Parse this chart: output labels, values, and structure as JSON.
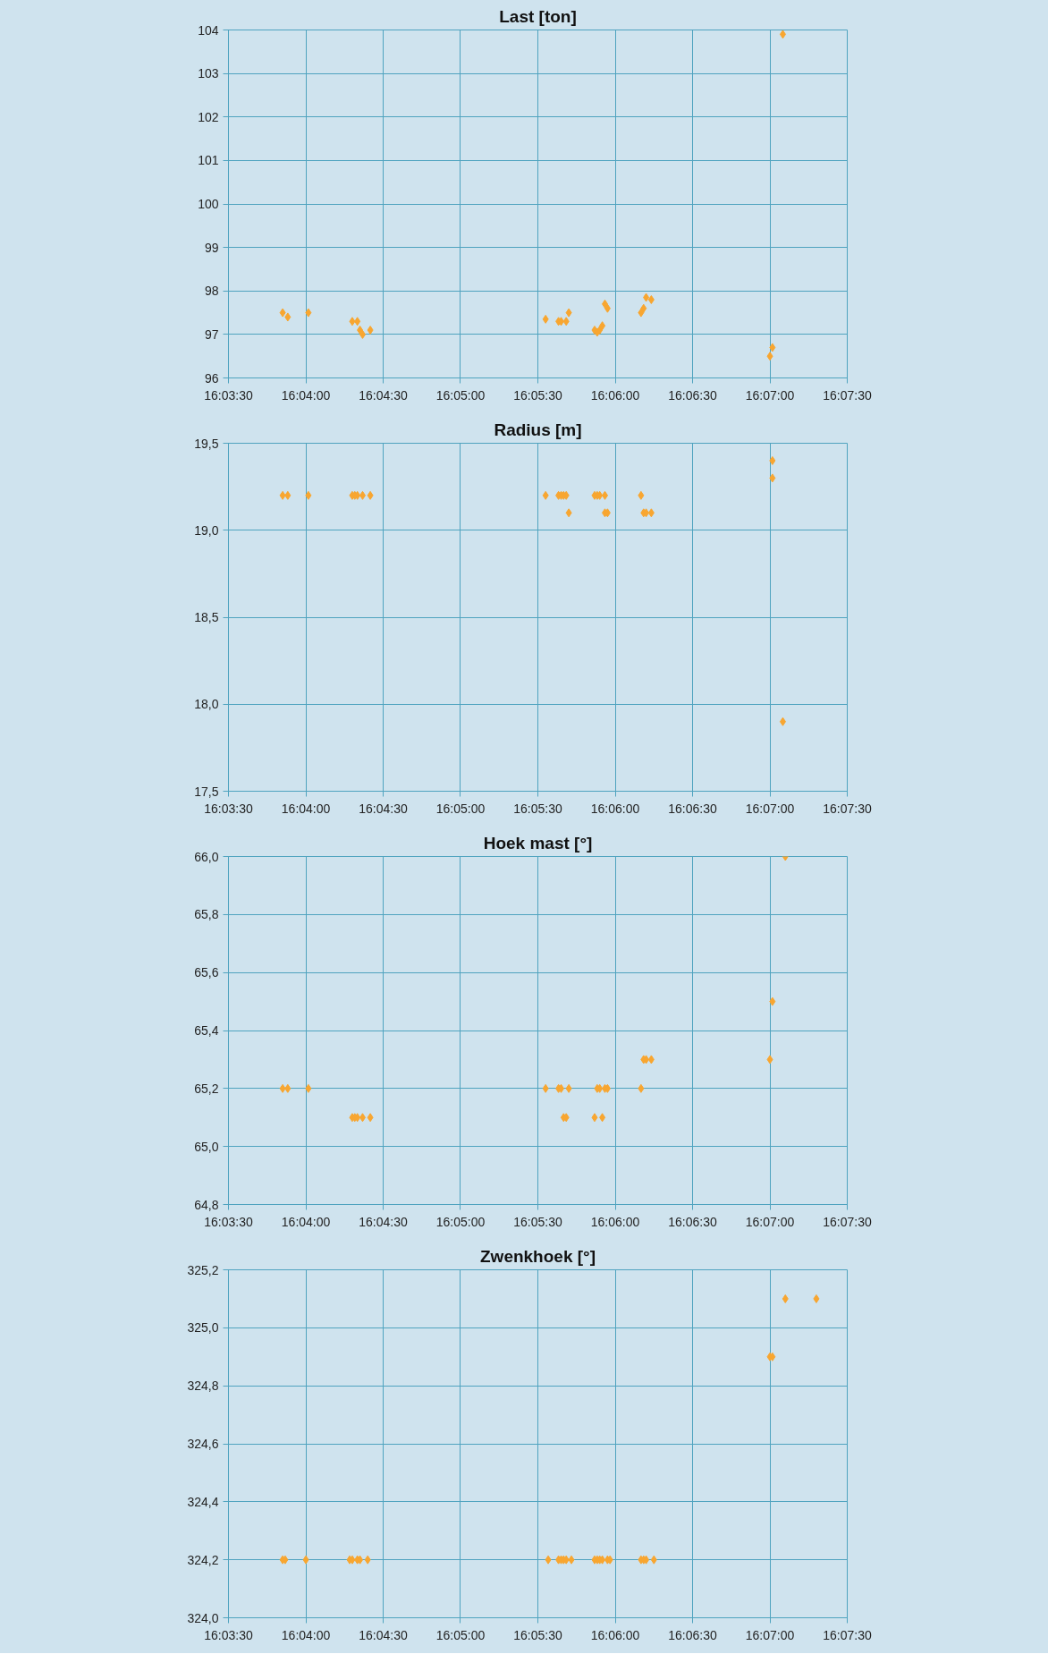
{
  "chart_data": [
    {
      "type": "scatter",
      "title": "Last [ton]",
      "marker": "diamond",
      "grid": true,
      "x": [
        16.06417,
        16.06472,
        16.06694,
        16.07167,
        16.07222,
        16.0725,
        16.07278,
        16.07361,
        16.0925,
        16.09389,
        16.09417,
        16.09472,
        16.095,
        16.09778,
        16.09806,
        16.09833,
        16.09861,
        16.09889,
        16.09917,
        16.10278,
        16.10306,
        16.10333,
        16.10389,
        16.11667,
        16.11694,
        16.11806
      ],
      "series": [
        {
          "color": "#f8a630",
          "values": [
            97.5,
            97.4,
            97.5,
            97.3,
            97.3,
            97.1,
            97.0,
            97.1,
            97.35,
            97.3,
            97.3,
            97.3,
            97.5,
            97.1,
            97.05,
            97.1,
            97.2,
            97.7,
            97.6,
            97.5,
            97.6,
            97.85,
            97.8,
            96.5,
            96.7,
            103.9
          ]
        }
      ],
      "xlim": [
        16.05833,
        16.125
      ],
      "ylim": [
        96,
        104
      ],
      "xticks": [
        {
          "value": 16.05833,
          "label": "16:03:30"
        },
        {
          "value": 16.06667,
          "label": "16:04:00"
        },
        {
          "value": 16.075,
          "label": "16:04:30"
        },
        {
          "value": 16.08333,
          "label": "16:05:00"
        },
        {
          "value": 16.09167,
          "label": "16:05:30"
        },
        {
          "value": 16.1,
          "label": "16:06:00"
        },
        {
          "value": 16.10833,
          "label": "16:06:30"
        },
        {
          "value": 16.11667,
          "label": "16:07:00"
        },
        {
          "value": 16.125,
          "label": "16:07:30"
        }
      ],
      "yticks": [
        96,
        97,
        98,
        99,
        100,
        101,
        102,
        103,
        104
      ]
    },
    {
      "type": "scatter",
      "title": "Radius [m]",
      "marker": "diamond",
      "grid": true,
      "x": [
        16.06417,
        16.06472,
        16.06694,
        16.07167,
        16.07194,
        16.07222,
        16.07278,
        16.07361,
        16.0925,
        16.09389,
        16.09417,
        16.09444,
        16.09472,
        16.095,
        16.09778,
        16.09806,
        16.09833,
        16.09889,
        16.09889,
        16.09917,
        16.10278,
        16.10306,
        16.10333,
        16.10389,
        16.11694,
        16.11694,
        16.11806
      ],
      "series": [
        {
          "color": "#f8a630",
          "values": [
            19.2,
            19.2,
            19.2,
            19.2,
            19.2,
            19.2,
            19.2,
            19.2,
            19.2,
            19.2,
            19.2,
            19.2,
            19.2,
            19.1,
            19.2,
            19.2,
            19.2,
            19.2,
            19.1,
            19.1,
            19.2,
            19.1,
            19.1,
            19.1,
            19.4,
            19.3,
            17.9
          ]
        }
      ],
      "xlim": [
        16.05833,
        16.125
      ],
      "ylim": [
        17.5,
        19.5
      ],
      "xticks": [
        {
          "value": 16.05833,
          "label": "16:03:30"
        },
        {
          "value": 16.06667,
          "label": "16:04:00"
        },
        {
          "value": 16.075,
          "label": "16:04:30"
        },
        {
          "value": 16.08333,
          "label": "16:05:00"
        },
        {
          "value": 16.09167,
          "label": "16:05:30"
        },
        {
          "value": 16.1,
          "label": "16:06:00"
        },
        {
          "value": 16.10833,
          "label": "16:06:30"
        },
        {
          "value": 16.11667,
          "label": "16:07:00"
        },
        {
          "value": 16.125,
          "label": "16:07:30"
        }
      ],
      "yticks": [
        {
          "value": 17.5,
          "label": "17,5"
        },
        {
          "value": 18.0,
          "label": "18,0"
        },
        {
          "value": 18.5,
          "label": "18,5"
        },
        {
          "value": 19.0,
          "label": "19,0"
        },
        {
          "value": 19.5,
          "label": "19,5"
        }
      ]
    },
    {
      "type": "scatter",
      "title": "Hoek mast [°]",
      "marker": "diamond",
      "grid": true,
      "x": [
        16.06417,
        16.06472,
        16.06694,
        16.07167,
        16.07194,
        16.07222,
        16.07278,
        16.07361,
        16.0925,
        16.09389,
        16.09417,
        16.09444,
        16.09472,
        16.095,
        16.09778,
        16.09806,
        16.09833,
        16.09861,
        16.09889,
        16.09917,
        16.10278,
        16.10306,
        16.10333,
        16.10389,
        16.11667,
        16.11694,
        16.11833
      ],
      "series": [
        {
          "color": "#f8a630",
          "values": [
            65.2,
            65.2,
            65.2,
            65.1,
            65.1,
            65.1,
            65.1,
            65.1,
            65.2,
            65.2,
            65.2,
            65.1,
            65.1,
            65.2,
            65.1,
            65.2,
            65.2,
            65.1,
            65.2,
            65.2,
            65.2,
            65.3,
            65.3,
            65.3,
            65.3,
            65.5,
            66.0
          ]
        }
      ],
      "xlim": [
        16.05833,
        16.125
      ],
      "ylim": [
        64.8,
        66.0
      ],
      "xticks": [
        {
          "value": 16.05833,
          "label": "16:03:30"
        },
        {
          "value": 16.06667,
          "label": "16:04:00"
        },
        {
          "value": 16.075,
          "label": "16:04:30"
        },
        {
          "value": 16.08333,
          "label": "16:05:00"
        },
        {
          "value": 16.09167,
          "label": "16:05:30"
        },
        {
          "value": 16.1,
          "label": "16:06:00"
        },
        {
          "value": 16.10833,
          "label": "16:06:30"
        },
        {
          "value": 16.11667,
          "label": "16:07:00"
        },
        {
          "value": 16.125,
          "label": "16:07:30"
        }
      ],
      "yticks": [
        {
          "value": 64.8,
          "label": "64,8"
        },
        {
          "value": 65.0,
          "label": "65,0"
        },
        {
          "value": 65.2,
          "label": "65,2"
        },
        {
          "value": 65.4,
          "label": "65,4"
        },
        {
          "value": 65.6,
          "label": "65,6"
        },
        {
          "value": 65.8,
          "label": "65,8"
        },
        {
          "value": 66.0,
          "label": "66,0"
        }
      ]
    },
    {
      "type": "scatter",
      "title": "Zwenkhoek [°]",
      "marker": "diamond",
      "grid": true,
      "x": [
        16.06417,
        16.06444,
        16.06667,
        16.07139,
        16.07167,
        16.07222,
        16.0725,
        16.07333,
        16.09278,
        16.09389,
        16.09417,
        16.09444,
        16.09472,
        16.09528,
        16.09778,
        16.09806,
        16.09833,
        16.09861,
        16.09917,
        16.09944,
        16.10278,
        16.10306,
        16.10333,
        16.10417,
        16.11667,
        16.11694,
        16.11833,
        16.12167
      ],
      "series": [
        {
          "color": "#f8a630",
          "values": [
            324.2,
            324.2,
            324.2,
            324.2,
            324.2,
            324.2,
            324.2,
            324.2,
            324.2,
            324.2,
            324.2,
            324.2,
            324.2,
            324.2,
            324.2,
            324.2,
            324.2,
            324.2,
            324.2,
            324.2,
            324.2,
            324.2,
            324.2,
            324.2,
            324.9,
            324.9,
            325.1,
            325.1
          ]
        }
      ],
      "xlim": [
        16.05833,
        16.125
      ],
      "ylim": [
        324.0,
        325.2
      ],
      "xticks": [
        {
          "value": 16.05833,
          "label": "16:03:30"
        },
        {
          "value": 16.06667,
          "label": "16:04:00"
        },
        {
          "value": 16.075,
          "label": "16:04:30"
        },
        {
          "value": 16.08333,
          "label": "16:05:00"
        },
        {
          "value": 16.09167,
          "label": "16:05:30"
        },
        {
          "value": 16.1,
          "label": "16:06:00"
        },
        {
          "value": 16.10833,
          "label": "16:06:30"
        },
        {
          "value": 16.11667,
          "label": "16:07:00"
        },
        {
          "value": 16.125,
          "label": "16:07:30"
        }
      ],
      "yticks": [
        {
          "value": 324.0,
          "label": "324,0"
        },
        {
          "value": 324.2,
          "label": "324,2"
        },
        {
          "value": 324.4,
          "label": "324,4"
        },
        {
          "value": 324.6,
          "label": "324,6"
        },
        {
          "value": 324.8,
          "label": "324,8"
        },
        {
          "value": 325.0,
          "label": "325,0"
        },
        {
          "value": 325.2,
          "label": "325,2"
        }
      ]
    }
  ]
}
